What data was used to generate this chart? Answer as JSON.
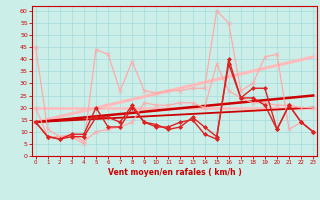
{
  "title": "",
  "xlabel": "Vent moyen/en rafales ( km/h )",
  "background_color": "#cceee8",
  "grid_color": "#aadddd",
  "x_ticks": [
    0,
    1,
    2,
    3,
    4,
    5,
    6,
    7,
    8,
    9,
    10,
    11,
    12,
    13,
    14,
    15,
    16,
    17,
    18,
    19,
    20,
    21,
    22,
    23
  ],
  "y_ticks": [
    0,
    5,
    10,
    15,
    20,
    25,
    30,
    35,
    40,
    45,
    50,
    55,
    60
  ],
  "xlim": [
    -0.3,
    23.3
  ],
  "ylim": [
    0,
    62
  ],
  "series": [
    {
      "x": [
        0,
        1,
        2,
        3,
        4,
        5,
        6,
        7,
        8,
        9,
        10,
        11,
        12,
        13,
        14,
        15,
        16,
        17,
        18,
        19,
        20,
        21,
        22,
        23
      ],
      "y": [
        45,
        11,
        8,
        8,
        5,
        44,
        42,
        27,
        39,
        27,
        26,
        27,
        27,
        28,
        28,
        60,
        55,
        27,
        30,
        41,
        42,
        11,
        14,
        10
      ],
      "color": "#ffaaaa",
      "lw": 0.9,
      "marker": "x",
      "ms": 3,
      "zorder": 3
    },
    {
      "x": [
        0,
        1,
        2,
        3,
        4,
        5,
        6,
        7,
        8,
        9,
        10,
        11,
        12,
        13,
        14,
        15,
        16,
        17,
        18,
        19,
        20,
        21,
        22,
        23
      ],
      "y": [
        20,
        8,
        8,
        9,
        6,
        10,
        11,
        12,
        14,
        22,
        21,
        21,
        22,
        22,
        20,
        38,
        27,
        24,
        22,
        22,
        21,
        21,
        20,
        20
      ],
      "color": "#ffaaaa",
      "lw": 0.9,
      "marker": "x",
      "ms": 3,
      "zorder": 3
    },
    {
      "x": [
        0,
        1,
        2,
        3,
        4,
        5,
        6,
        7,
        8,
        9,
        10,
        11,
        12,
        13,
        14,
        15,
        16,
        17,
        18,
        19,
        20,
        21,
        22,
        23
      ],
      "y": [
        14,
        8,
        7,
        8,
        8,
        16,
        16,
        14,
        21,
        14,
        13,
        11,
        12,
        16,
        12,
        8,
        38,
        24,
        28,
        28,
        11,
        21,
        14,
        10
      ],
      "color": "#dd2222",
      "lw": 1.0,
      "marker": "D",
      "ms": 2,
      "zorder": 4
    },
    {
      "x": [
        0,
        1,
        2,
        3,
        4,
        5,
        6,
        7,
        8,
        9,
        10,
        11,
        12,
        13,
        14,
        15,
        16,
        17,
        18,
        19,
        20,
        21,
        22,
        23
      ],
      "y": [
        14,
        8,
        7,
        9,
        9,
        20,
        12,
        12,
        20,
        14,
        12,
        12,
        14,
        15,
        9,
        7,
        40,
        24,
        24,
        21,
        11,
        21,
        14,
        10
      ],
      "color": "#dd2222",
      "lw": 1.0,
      "marker": "D",
      "ms": 2,
      "zorder": 4
    },
    {
      "x": [
        0,
        23
      ],
      "y": [
        14,
        41
      ],
      "color": "#ffbbbb",
      "lw": 2.2,
      "marker": null,
      "ms": 0,
      "zorder": 2
    },
    {
      "x": [
        0,
        23
      ],
      "y": [
        20,
        20
      ],
      "color": "#ffbbbb",
      "lw": 1.8,
      "marker": null,
      "ms": 0,
      "zorder": 2
    },
    {
      "x": [
        0,
        23
      ],
      "y": [
        14,
        25
      ],
      "color": "#cc0000",
      "lw": 1.8,
      "marker": null,
      "ms": 0,
      "zorder": 2
    },
    {
      "x": [
        0,
        23
      ],
      "y": [
        14,
        20
      ],
      "color": "#cc0000",
      "lw": 1.3,
      "marker": null,
      "ms": 0,
      "zorder": 2
    }
  ]
}
